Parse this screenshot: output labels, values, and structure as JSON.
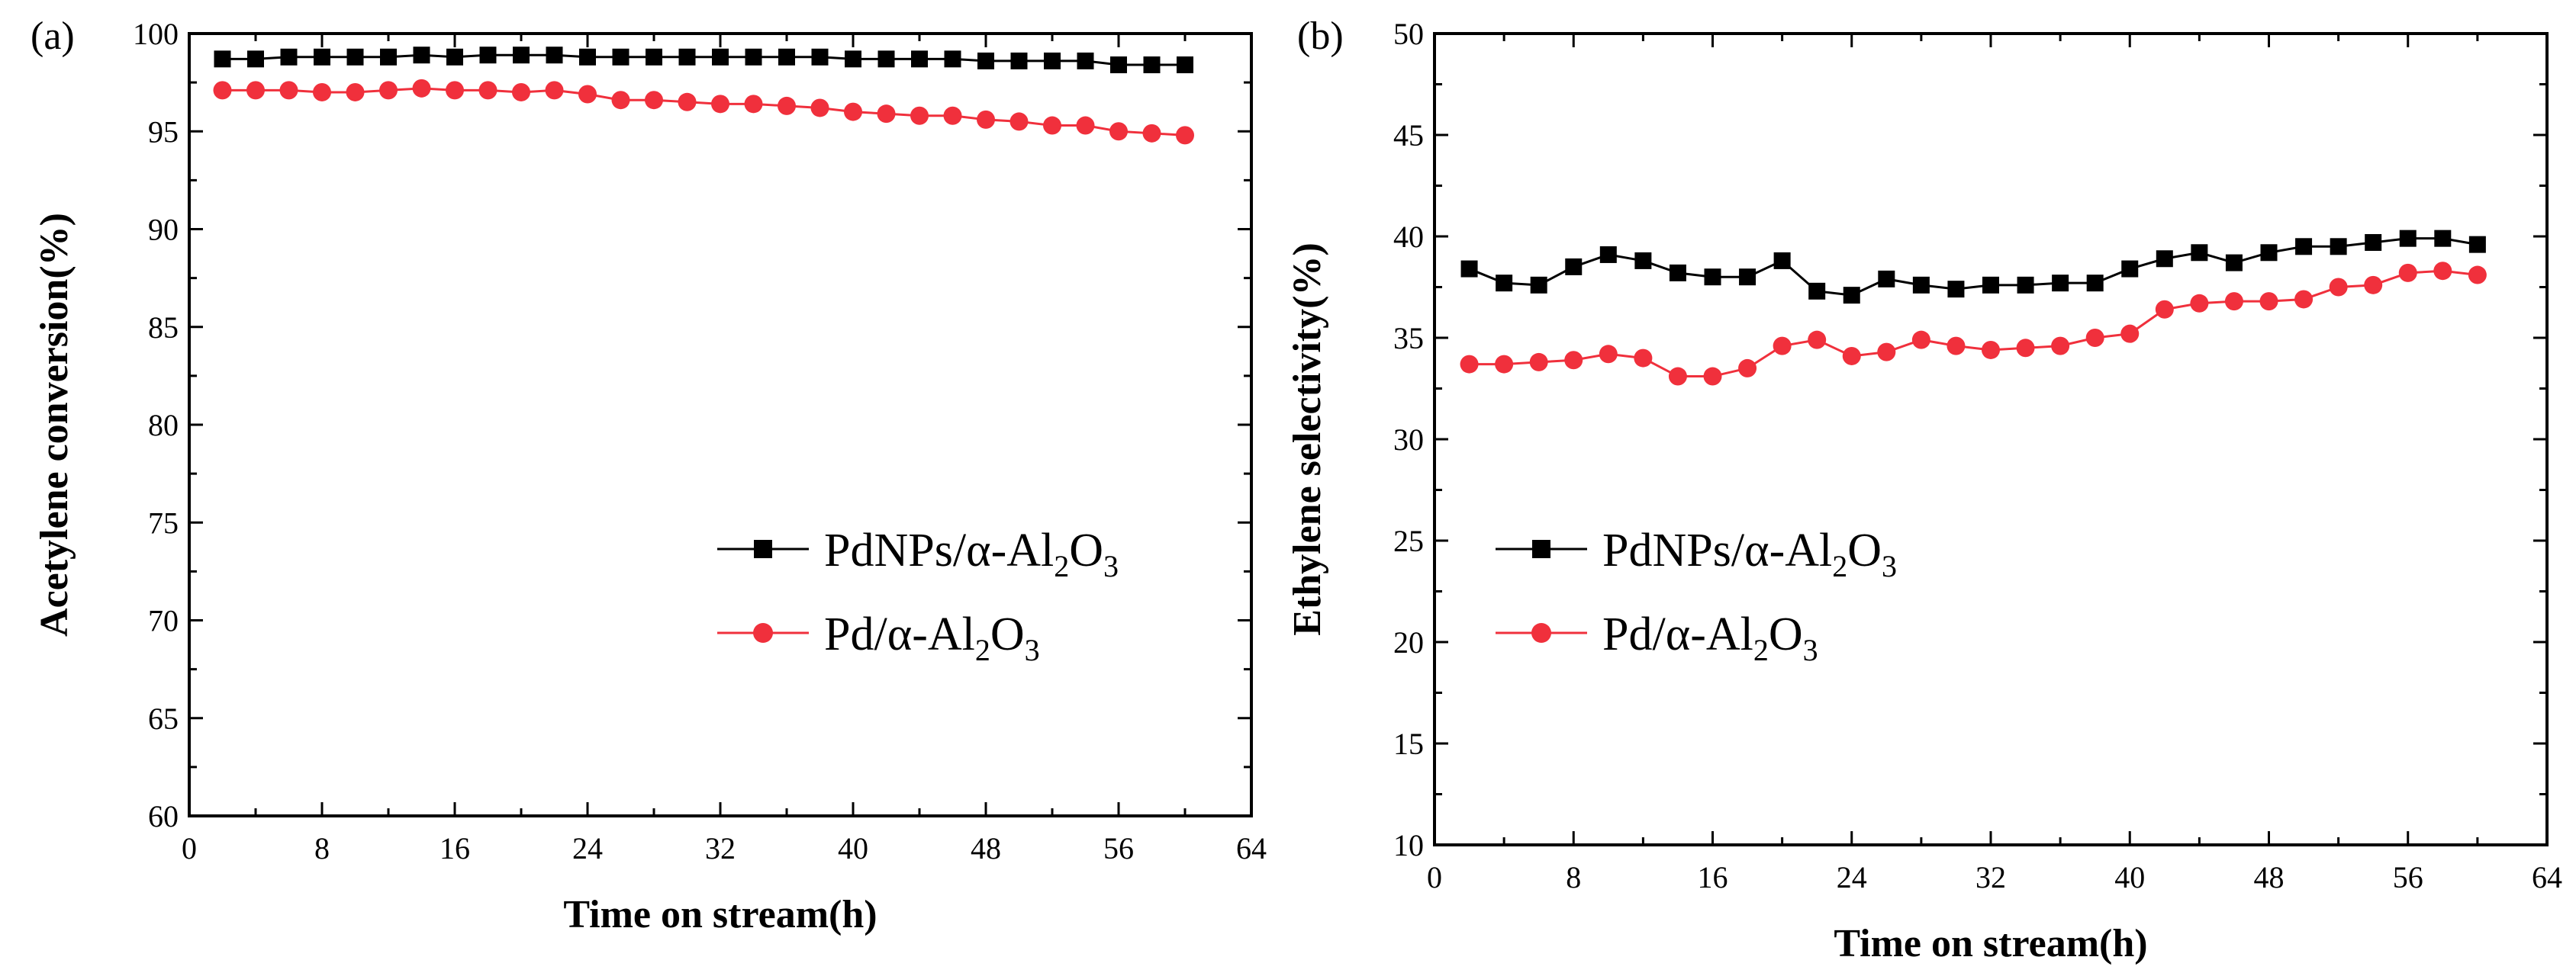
{
  "colors": {
    "series_black": "#000000",
    "series_red": "#f0303c",
    "axis": "#000000"
  },
  "chart_data": [
    {
      "type": "line",
      "panel_label": "(a)",
      "xlabel": "Time on stream(h)",
      "ylabel": "Acetylene conversion(%)",
      "xlim": [
        0,
        64
      ],
      "ylim": [
        60,
        100
      ],
      "xticks": [
        0,
        8,
        16,
        24,
        32,
        40,
        48,
        56,
        64
      ],
      "yticks": [
        60,
        65,
        70,
        75,
        80,
        85,
        90,
        95,
        100
      ],
      "x": [
        2,
        4,
        6,
        8,
        10,
        12,
        14,
        16,
        18,
        20,
        22,
        24,
        26,
        28,
        30,
        32,
        34,
        36,
        38,
        40,
        42,
        44,
        46,
        48,
        50,
        52,
        54,
        56,
        58,
        60
      ],
      "series": [
        {
          "name": "PdNPs/α-Al2O3",
          "legend": {
            "main": "PdNPs/α-Al",
            "sub": "2",
            "mid": "O",
            "sub2": "3"
          },
          "marker": "square",
          "color": "#000000",
          "values": [
            98.7,
            98.7,
            98.8,
            98.8,
            98.8,
            98.8,
            98.9,
            98.8,
            98.9,
            98.9,
            98.9,
            98.8,
            98.8,
            98.8,
            98.8,
            98.8,
            98.8,
            98.8,
            98.8,
            98.7,
            98.7,
            98.7,
            98.7,
            98.6,
            98.6,
            98.6,
            98.6,
            98.4,
            98.4,
            98.4
          ]
        },
        {
          "name": "Pd/α-Al2O3",
          "legend": {
            "main": "Pd/α-Al",
            "sub": "2",
            "mid": "O",
            "sub2": "3"
          },
          "marker": "circle",
          "color": "#f0303c",
          "values": [
            97.1,
            97.1,
            97.1,
            97.0,
            97.0,
            97.1,
            97.2,
            97.1,
            97.1,
            97.0,
            97.1,
            96.9,
            96.6,
            96.6,
            96.5,
            96.4,
            96.4,
            96.3,
            96.2,
            96.0,
            95.9,
            95.8,
            95.8,
            95.6,
            95.5,
            95.3,
            95.3,
            95.0,
            94.9,
            94.8
          ]
        }
      ]
    },
    {
      "type": "line",
      "panel_label": "(b)",
      "xlabel": "Time on stream(h)",
      "ylabel": "Ethylene selectivity(%)",
      "xlim": [
        0,
        64
      ],
      "ylim": [
        10,
        50
      ],
      "xticks": [
        0,
        8,
        16,
        24,
        32,
        40,
        48,
        56,
        64
      ],
      "yticks": [
        10,
        15,
        20,
        25,
        30,
        35,
        40,
        45,
        50
      ],
      "x": [
        2,
        4,
        6,
        8,
        10,
        12,
        14,
        16,
        18,
        20,
        22,
        24,
        26,
        28,
        30,
        32,
        34,
        36,
        38,
        40,
        42,
        44,
        46,
        48,
        50,
        52,
        54,
        56,
        58,
        60
      ],
      "series": [
        {
          "name": "PdNPs/α-Al2O3",
          "legend": {
            "main": "PdNPs/α-Al",
            "sub": "2",
            "mid": "O",
            "sub2": "3"
          },
          "marker": "square",
          "color": "#000000",
          "values": [
            38.4,
            37.7,
            37.6,
            38.5,
            39.1,
            38.8,
            38.2,
            38.0,
            38.0,
            38.8,
            37.3,
            37.1,
            37.9,
            37.6,
            37.4,
            37.6,
            37.6,
            37.7,
            37.7,
            38.4,
            38.9,
            39.2,
            38.7,
            39.2,
            39.5,
            39.5,
            39.7,
            39.9,
            39.9,
            39.6
          ]
        },
        {
          "name": "Pd/α-Al2O3",
          "legend": {
            "main": "Pd/α-Al",
            "sub": "2",
            "mid": "O",
            "sub2": "3"
          },
          "marker": "circle",
          "color": "#f0303c",
          "values": [
            33.7,
            33.7,
            33.8,
            33.9,
            34.2,
            34.0,
            33.1,
            33.1,
            33.5,
            34.6,
            34.9,
            34.1,
            34.3,
            34.9,
            34.6,
            34.4,
            34.5,
            34.6,
            35.0,
            35.2,
            36.4,
            36.7,
            36.8,
            36.8,
            36.9,
            37.5,
            37.6,
            38.2,
            38.3,
            38.1
          ]
        }
      ]
    }
  ]
}
